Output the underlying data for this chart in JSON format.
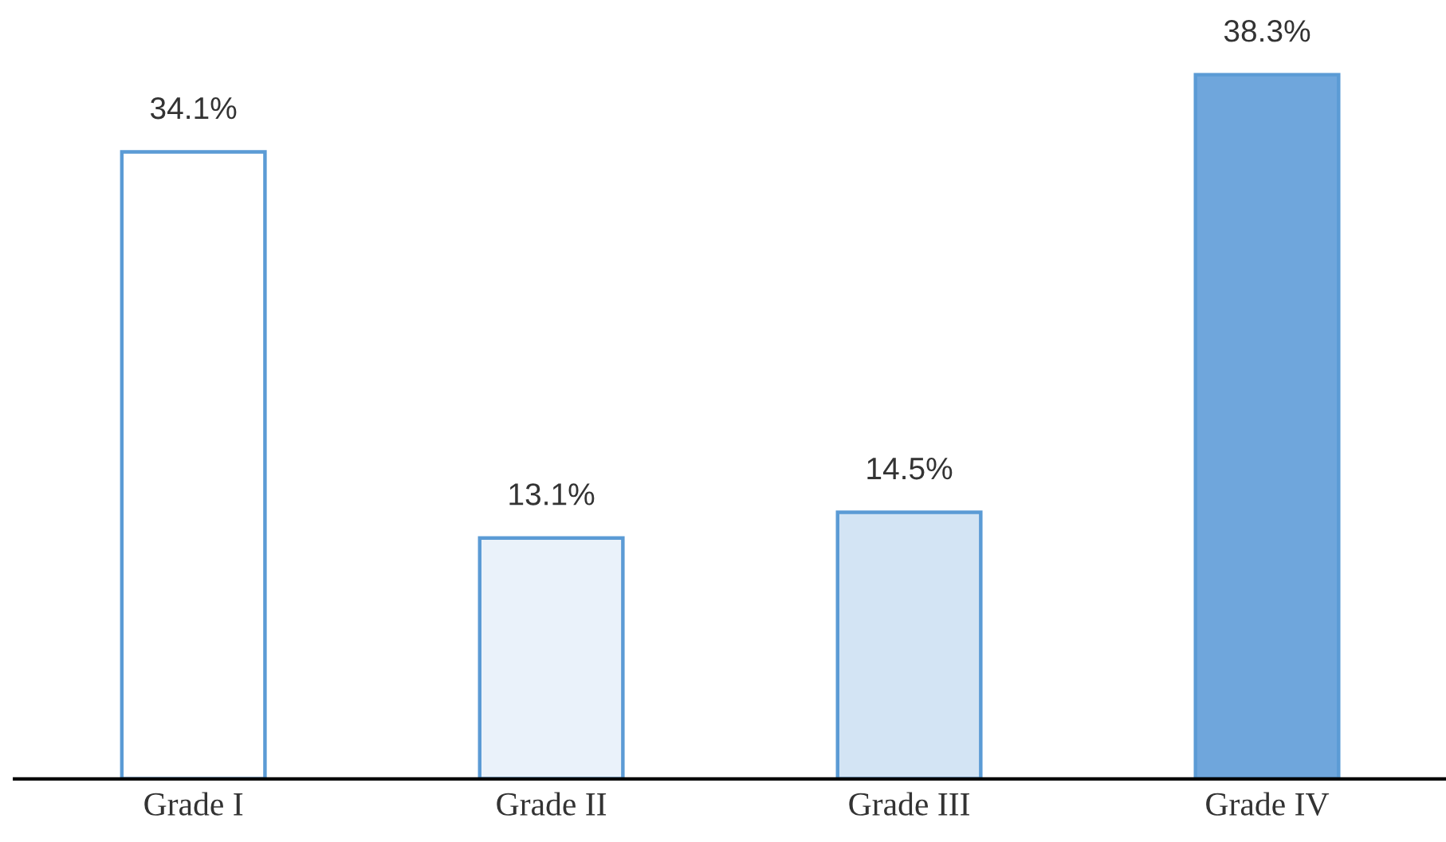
{
  "chart_data": {
    "type": "bar",
    "categories": [
      "Grade I",
      "Grade II",
      "Grade III",
      "Grade IV"
    ],
    "values": [
      34.1,
      13.1,
      14.5,
      38.3
    ],
    "value_labels": [
      "34.1%",
      "13.1%",
      "14.5%",
      "38.3%"
    ],
    "colors": [
      "#ffffff",
      "#eaf2fa",
      "#d3e4f4",
      "#6fa6dc"
    ],
    "grid": false,
    "legend": false
  }
}
